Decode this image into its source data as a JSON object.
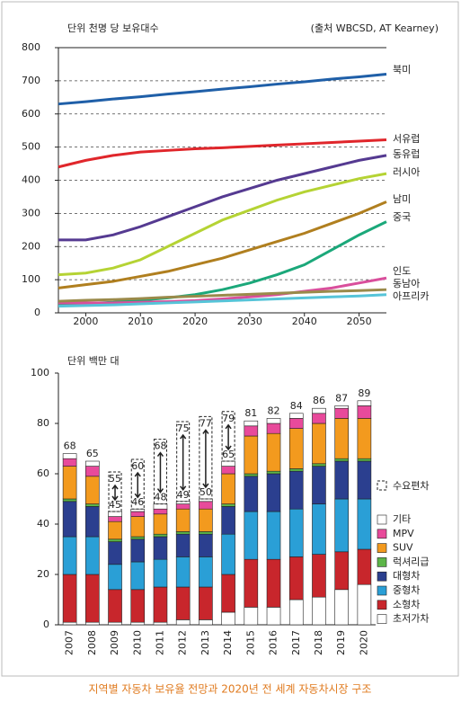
{
  "chart_data": [
    {
      "type": "line",
      "y_label": "단위 천명 당 보유대수",
      "source": "(출처 WBCSD, AT Kearney)",
      "x": [
        1995,
        2000,
        2005,
        2010,
        2015,
        2020,
        2025,
        2030,
        2035,
        2040,
        2045,
        2050,
        2055
      ],
      "xlim": [
        1995,
        2055
      ],
      "ylim": [
        0,
        800
      ],
      "xticks": [
        2000,
        2010,
        2020,
        2030,
        2040,
        2050
      ],
      "yticks": [
        0,
        100,
        200,
        300,
        400,
        500,
        600,
        700,
        800
      ],
      "grid": true,
      "series": [
        {
          "name": "북미",
          "color": "#1f5fa8",
          "values": [
            630,
            637,
            645,
            652,
            660,
            667,
            675,
            682,
            690,
            697,
            705,
            712,
            720
          ]
        },
        {
          "name": "서유럽",
          "color": "#e0262b",
          "values": [
            440,
            460,
            475,
            485,
            490,
            495,
            498,
            502,
            506,
            510,
            514,
            518,
            522
          ]
        },
        {
          "name": "동유럽",
          "color": "#553a91",
          "values": [
            220,
            220,
            235,
            260,
            290,
            320,
            350,
            375,
            400,
            420,
            440,
            460,
            475
          ]
        },
        {
          "name": "러시아",
          "color": "#b5d334",
          "values": [
            115,
            120,
            135,
            160,
            200,
            240,
            280,
            310,
            340,
            365,
            385,
            405,
            420
          ]
        },
        {
          "name": "남미",
          "color": "#b07f1f",
          "values": [
            75,
            85,
            95,
            110,
            125,
            145,
            165,
            190,
            215,
            240,
            270,
            300,
            335
          ]
        },
        {
          "name": "중국",
          "color": "#1ba87a",
          "values": [
            25,
            28,
            32,
            38,
            45,
            55,
            70,
            90,
            115,
            145,
            190,
            235,
            275
          ]
        },
        {
          "name": "인도",
          "color": "#d94f9c",
          "values": [
            30,
            30,
            30,
            32,
            34,
            37,
            42,
            48,
            55,
            65,
            75,
            90,
            105
          ]
        },
        {
          "name": "동남아",
          "color": "#9a8a4a",
          "values": [
            35,
            38,
            40,
            43,
            47,
            50,
            53,
            56,
            59,
            62,
            65,
            67,
            70
          ]
        },
        {
          "name": "아프리카",
          "color": "#56c4d8",
          "values": [
            20,
            22,
            24,
            27,
            30,
            33,
            36,
            39,
            42,
            45,
            48,
            51,
            55
          ]
        }
      ]
    },
    {
      "type": "stacked_bar",
      "y_label": "단위 백만 대",
      "categories": [
        "2007",
        "2008",
        "2009",
        "2010",
        "2011",
        "2012",
        "2013",
        "2014",
        "2015",
        "2016",
        "2017",
        "2018",
        "2019",
        "2020"
      ],
      "ylim": [
        0,
        100
      ],
      "yticks": [
        0,
        20,
        40,
        60,
        80,
        100
      ],
      "series": [
        {
          "name": "초저가차",
          "color": "#ffffff",
          "values": [
            1,
            1,
            1,
            1,
            1,
            2,
            2,
            5,
            7,
            7,
            10,
            11,
            14,
            16
          ]
        },
        {
          "name": "소형차",
          "color": "#c8262c",
          "values": [
            19,
            19,
            13,
            13,
            14,
            13,
            13,
            15,
            19,
            19,
            17,
            17,
            15,
            14
          ]
        },
        {
          "name": "중형차",
          "color": "#2a9fd6",
          "values": [
            15,
            15,
            10,
            11,
            11,
            12,
            12,
            16,
            19,
            19,
            19,
            20,
            21,
            20
          ]
        },
        {
          "name": "대형차",
          "color": "#2b3f8f",
          "values": [
            14,
            12,
            9,
            9,
            9,
            9,
            9,
            11,
            14,
            15,
            15,
            15,
            15,
            15
          ]
        },
        {
          "name": "럭셔리급",
          "color": "#5cb548",
          "values": [
            1,
            1,
            1,
            1,
            1,
            1,
            1,
            1,
            1,
            1,
            1,
            1,
            1,
            1
          ]
        },
        {
          "name": "SUV",
          "color": "#f39a1e",
          "values": [
            13,
            11,
            7,
            8,
            8,
            9,
            9,
            12,
            15,
            15,
            16,
            16,
            16,
            16
          ]
        },
        {
          "name": "MPV",
          "color": "#e84a9b",
          "values": [
            3,
            4,
            2,
            2,
            2,
            2,
            3,
            3,
            4,
            4,
            4,
            4,
            4,
            5
          ]
        },
        {
          "name": "기타",
          "color": "#ffffff",
          "values": [
            2,
            2,
            2,
            1,
            2,
            1,
            1,
            2,
            2,
            2,
            2,
            2,
            1,
            2
          ]
        }
      ],
      "totals": [
        68,
        65,
        null,
        null,
        null,
        null,
        null,
        null,
        81,
        82,
        84,
        86,
        87,
        89
      ],
      "deviation": {
        "name": "수요편차",
        "high": [
          null,
          null,
          55,
          60,
          68,
          75,
          77,
          79,
          null,
          null,
          null,
          null,
          null,
          null
        ],
        "low": [
          null,
          null,
          45,
          46,
          48,
          49,
          50,
          65,
          null,
          null,
          null,
          null,
          null,
          null
        ]
      }
    }
  ],
  "caption": "지역별 자동차 보유율 전망과 2020년 전 세계 자동차시장 구조"
}
